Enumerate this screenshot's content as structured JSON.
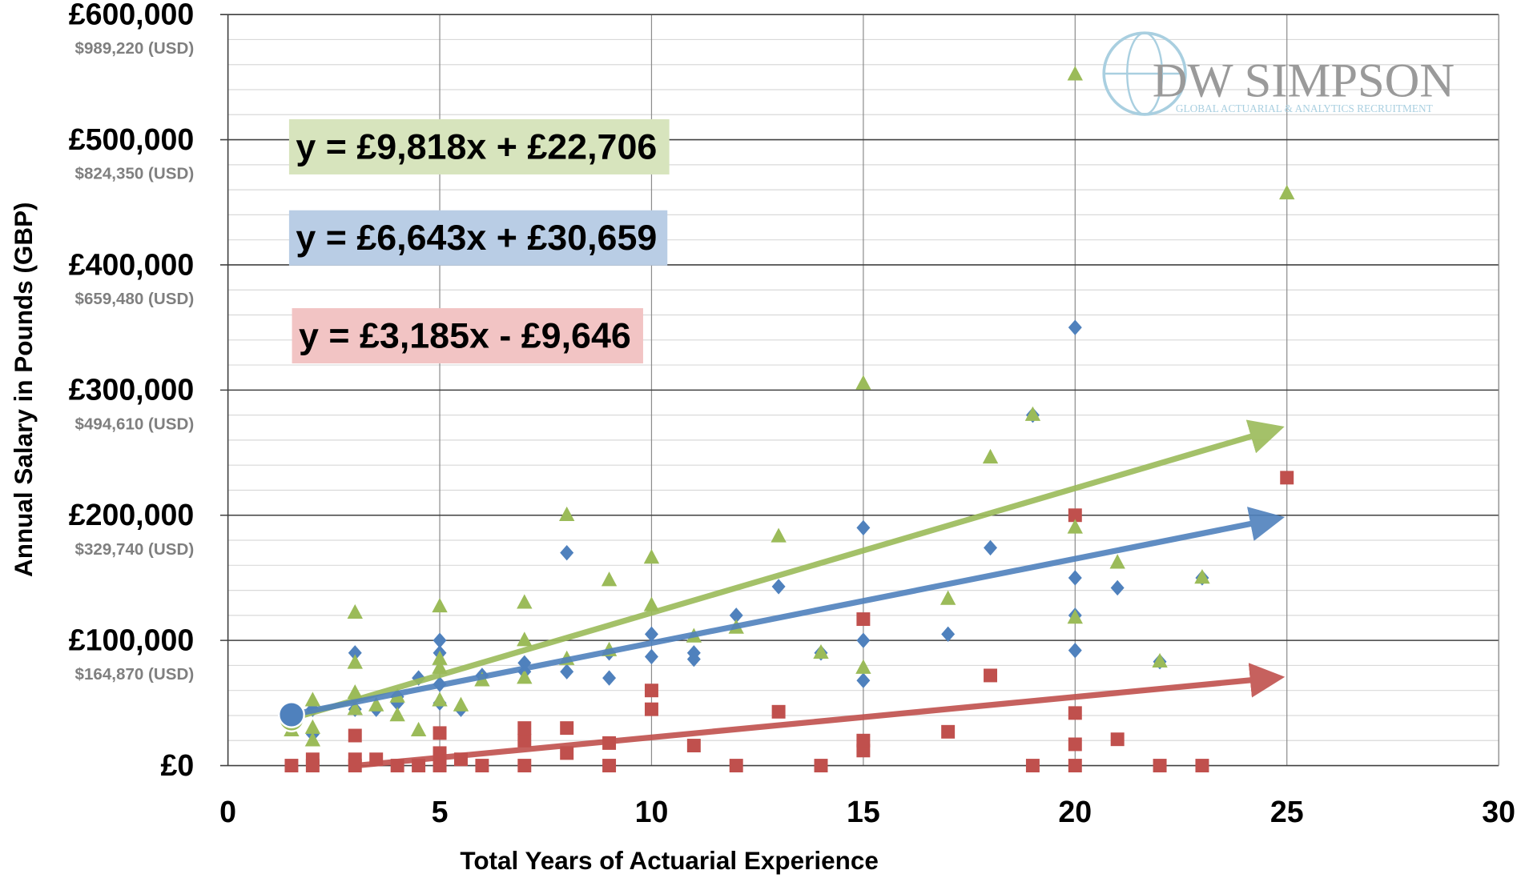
{
  "chart_data": {
    "type": "scatter",
    "xlabel": "Total Years of Actuarial Experience",
    "ylabel": "Annual Salary in Pounds (GBP)",
    "xlim": [
      0,
      30
    ],
    "xticks": [
      0,
      5,
      10,
      15,
      20,
      25,
      30
    ],
    "ylim": [
      0,
      600000
    ],
    "yticks": [
      {
        "value": 0,
        "label": "£0"
      },
      {
        "value": 100000,
        "label": "£100,000"
      },
      {
        "value": 200000,
        "label": "£200,000"
      },
      {
        "value": 300000,
        "label": "£300,000"
      },
      {
        "value": 400000,
        "label": "£400,000"
      },
      {
        "value": 500000,
        "label": "£500,000"
      },
      {
        "value": 600000,
        "label": "£600,000"
      }
    ],
    "ytick_sublabels": [
      null,
      "$164,870 (USD)",
      "$329,740 (USD)",
      "$494,610 (USD)",
      "$659,480 (USD)",
      "$824,350 (USD)",
      "$989,220 (USD)"
    ],
    "yminor": [
      20000,
      40000,
      60000,
      80000,
      120000,
      140000,
      160000,
      180000,
      220000,
      240000,
      260000,
      280000,
      320000,
      340000,
      360000,
      380000,
      420000,
      440000,
      460000,
      480000,
      520000,
      540000,
      560000,
      580000
    ],
    "grid": true,
    "logo": {
      "name": "DW SIMPSON",
      "tagline": "GLOBAL ACTUARIAL & ANALYTICS RECRUITMENT"
    },
    "series": [
      {
        "marker": "diamond",
        "color": "#4f81bd",
        "x": [
          1.5,
          1.5,
          2,
          2,
          3,
          3,
          3,
          3.5,
          4,
          4,
          4.5,
          5,
          5,
          5,
          5,
          5.5,
          6,
          7,
          7,
          8,
          8,
          9,
          9,
          10,
          10,
          11,
          11,
          12,
          13,
          14,
          15,
          15,
          15,
          17,
          18,
          19,
          20,
          20,
          20,
          20,
          21,
          22,
          23
        ],
        "values": [
          30000,
          35000,
          25000,
          45000,
          90000,
          45000,
          55000,
          45000,
          50000,
          55000,
          70000,
          100000,
          90000,
          65000,
          50000,
          45000,
          72000,
          82000,
          75000,
          170000,
          75000,
          70000,
          90000,
          105000,
          87000,
          85000,
          90000,
          120000,
          143000,
          90000,
          190000,
          100000,
          68000,
          105000,
          174000,
          280000,
          350000,
          150000,
          120000,
          92000,
          142000,
          83000,
          150000
        ]
      },
      {
        "marker": "triangle",
        "color": "#9bbb59",
        "x": [
          1.5,
          2,
          2,
          2,
          3,
          3,
          3,
          3,
          3.5,
          4,
          4,
          4.5,
          5,
          5,
          5,
          5,
          5.5,
          6,
          7,
          7,
          7,
          8,
          8,
          9,
          9,
          10,
          10,
          11,
          12,
          13,
          14,
          15,
          15,
          17,
          18,
          19,
          20,
          20,
          20,
          21,
          22,
          23,
          25
        ],
        "values": [
          28000,
          52000,
          20000,
          30000,
          122000,
          82000,
          58000,
          45000,
          48000,
          40000,
          55000,
          28000,
          127000,
          85000,
          78000,
          52000,
          48000,
          68000,
          130000,
          100000,
          70000,
          200000,
          85000,
          148000,
          92000,
          166000,
          128000,
          103000,
          110000,
          183000,
          90000,
          305000,
          78000,
          133000,
          246000,
          280000,
          552000,
          190000,
          118000,
          162000,
          83000,
          150000,
          457000
        ]
      },
      {
        "marker": "square",
        "color": "#c0504d",
        "x": [
          1.5,
          2,
          2,
          3,
          3,
          3,
          3.5,
          4,
          4.5,
          5,
          5,
          5,
          5.5,
          6,
          7,
          7,
          7,
          8,
          8,
          9,
          9,
          10,
          10,
          11,
          12,
          13,
          14,
          15,
          15,
          15,
          17,
          18,
          19,
          20,
          20,
          20,
          20,
          21,
          22,
          23,
          25
        ],
        "values": [
          0,
          0,
          5000,
          0,
          5000,
          24000,
          5000,
          0,
          0,
          0,
          10000,
          26000,
          5000,
          0,
          0,
          20000,
          30000,
          10000,
          30000,
          0,
          18000,
          45000,
          60000,
          16000,
          0,
          43000,
          0,
          12000,
          20000,
          117000,
          27000,
          72000,
          0,
          0,
          17000,
          42000,
          200000,
          21000,
          0,
          0,
          230000
        ]
      }
    ],
    "trendlines": [
      {
        "label": "y = £9,818x + £22,706",
        "color": "#9bbb59",
        "box": "#d7e4bd",
        "slope": 9818,
        "intercept": 22706,
        "x": [
          1.5,
          25
        ]
      },
      {
        "label": "y = £6,643x + £30,659",
        "color": "#4f81bd",
        "box": "#b9cde5",
        "slope": 6643,
        "intercept": 30659,
        "x": [
          1.5,
          25
        ]
      },
      {
        "label": "y = £3,185x - £9,646",
        "color": "#c0504d",
        "box": "#f2c4c4",
        "slope": 3185,
        "intercept": -9646,
        "x": [
          3,
          25
        ]
      }
    ]
  }
}
